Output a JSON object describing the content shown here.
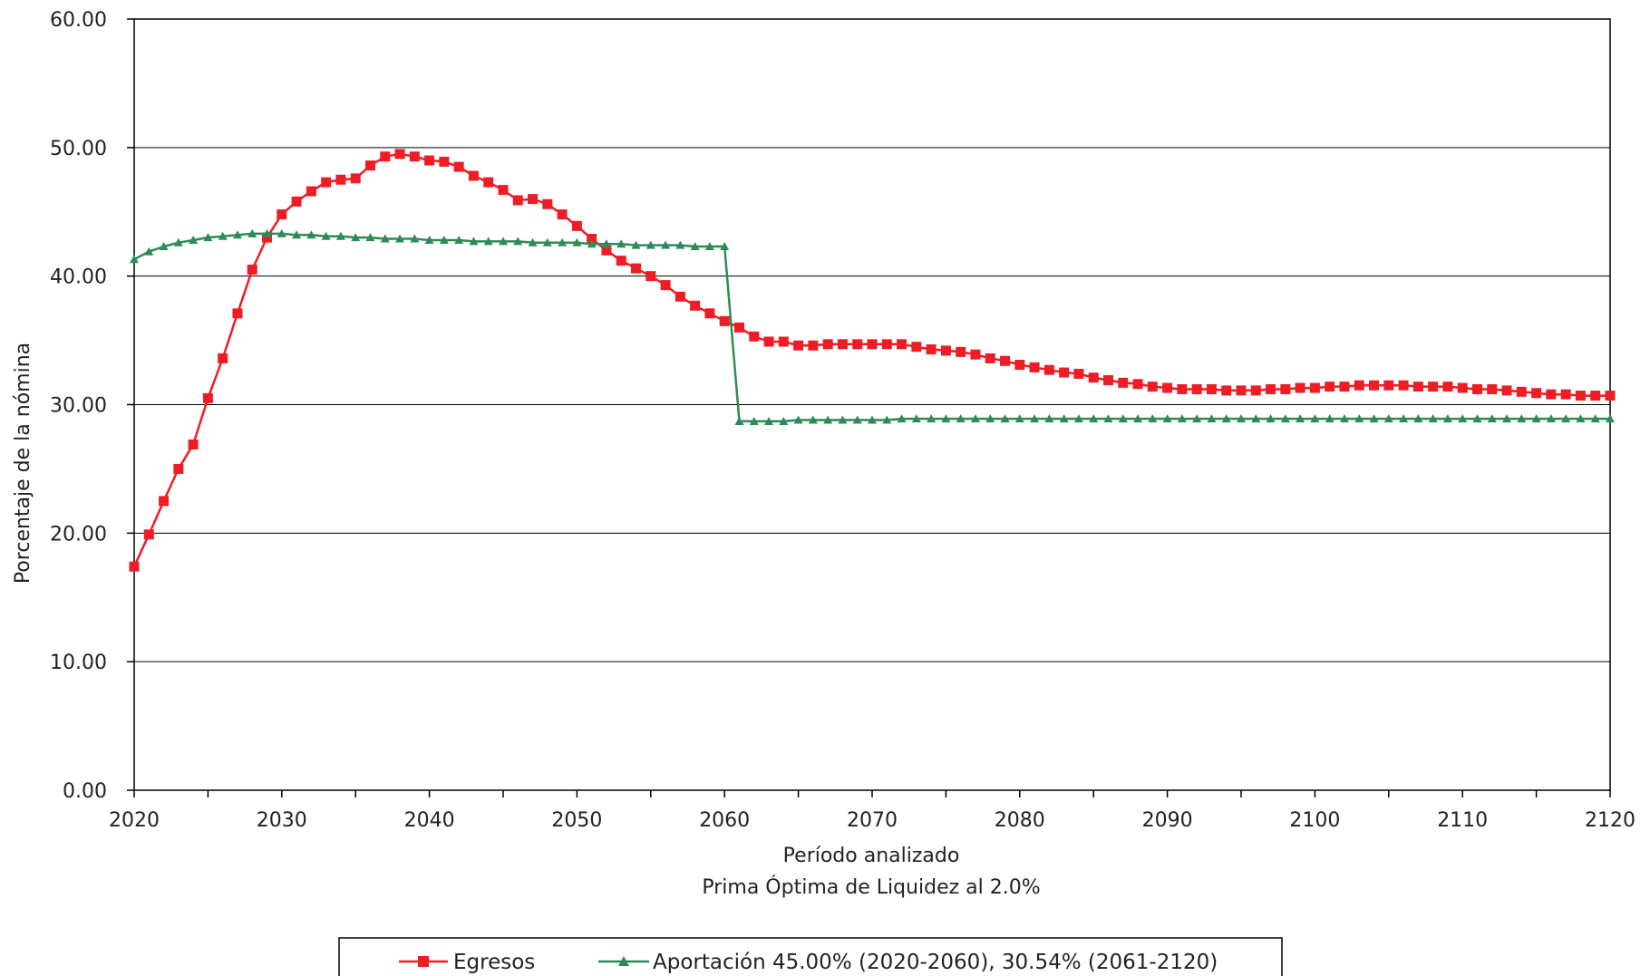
{
  "chart_data": {
    "type": "line",
    "title": "",
    "xlabel": "Período analizado",
    "subtitle": "Prima Óptima de Liquidez al 2.0%",
    "ylabel": "Porcentaje de la nómina",
    "xlim": [
      2020,
      2120
    ],
    "ylim": [
      0,
      60
    ],
    "x_ticks": [
      "2020",
      "2030",
      "2040",
      "2050",
      "2060",
      "2070",
      "2080",
      "2090",
      "2100",
      "2110",
      "2120"
    ],
    "y_ticks": [
      "0.00",
      "10.00",
      "20.00",
      "30.00",
      "40.00",
      "50.00",
      "60.00"
    ],
    "grid": "horizontal",
    "legend_position": "bottom",
    "series": [
      {
        "name": "Egresos",
        "color": "#ee1c25",
        "marker": "square",
        "x": [
          2020,
          2021,
          2022,
          2023,
          2024,
          2025,
          2026,
          2027,
          2028,
          2029,
          2030,
          2031,
          2032,
          2033,
          2034,
          2035,
          2036,
          2037,
          2038,
          2039,
          2040,
          2041,
          2042,
          2043,
          2044,
          2045,
          2046,
          2047,
          2048,
          2049,
          2050,
          2051,
          2052,
          2053,
          2054,
          2055,
          2056,
          2057,
          2058,
          2059,
          2060,
          2061,
          2062,
          2063,
          2064,
          2065,
          2066,
          2067,
          2068,
          2069,
          2070,
          2071,
          2072,
          2073,
          2074,
          2075,
          2076,
          2077,
          2078,
          2079,
          2080,
          2081,
          2082,
          2083,
          2084,
          2085,
          2086,
          2087,
          2088,
          2089,
          2090,
          2091,
          2092,
          2093,
          2094,
          2095,
          2096,
          2097,
          2098,
          2099,
          2100,
          2101,
          2102,
          2103,
          2104,
          2105,
          2106,
          2107,
          2108,
          2109,
          2110,
          2111,
          2112,
          2113,
          2114,
          2115,
          2116,
          2117,
          2118,
          2119,
          2120
        ],
        "y": [
          17.4,
          19.9,
          22.5,
          25.0,
          26.9,
          30.5,
          33.6,
          37.1,
          40.5,
          43.0,
          44.8,
          45.8,
          46.6,
          47.3,
          47.5,
          47.6,
          48.6,
          49.3,
          49.5,
          49.3,
          49.0,
          48.9,
          48.5,
          47.8,
          47.3,
          46.7,
          45.9,
          46.0,
          45.6,
          44.8,
          43.9,
          42.9,
          42.0,
          41.2,
          40.6,
          40.0,
          39.3,
          38.4,
          37.7,
          37.1,
          36.5,
          36.0,
          35.3,
          34.9,
          34.9,
          34.6,
          34.6,
          34.7,
          34.7,
          34.7,
          34.7,
          34.7,
          34.7,
          34.5,
          34.3,
          34.2,
          34.1,
          33.9,
          33.6,
          33.4,
          33.1,
          32.9,
          32.7,
          32.5,
          32.4,
          32.1,
          31.9,
          31.7,
          31.6,
          31.4,
          31.3,
          31.2,
          31.2,
          31.2,
          31.1,
          31.1,
          31.1,
          31.2,
          31.2,
          31.3,
          31.3,
          31.4,
          31.4,
          31.5,
          31.5,
          31.5,
          31.5,
          31.4,
          31.4,
          31.4,
          31.3,
          31.2,
          31.2,
          31.1,
          31.0,
          30.9,
          30.8,
          30.8,
          30.7,
          30.7,
          30.7
        ]
      },
      {
        "name": "Aportación 45.00% (2020-2060), 30.54% (2061-2120)",
        "color": "#2e8b57",
        "marker": "triangle",
        "x": [
          2020,
          2021,
          2022,
          2023,
          2024,
          2025,
          2026,
          2027,
          2028,
          2029,
          2030,
          2031,
          2032,
          2033,
          2034,
          2035,
          2036,
          2037,
          2038,
          2039,
          2040,
          2041,
          2042,
          2043,
          2044,
          2045,
          2046,
          2047,
          2048,
          2049,
          2050,
          2051,
          2052,
          2053,
          2054,
          2055,
          2056,
          2057,
          2058,
          2059,
          2060,
          2061,
          2062,
          2063,
          2064,
          2065,
          2066,
          2067,
          2068,
          2069,
          2070,
          2071,
          2072,
          2073,
          2074,
          2075,
          2076,
          2077,
          2078,
          2079,
          2080,
          2081,
          2082,
          2083,
          2084,
          2085,
          2086,
          2087,
          2088,
          2089,
          2090,
          2091,
          2092,
          2093,
          2094,
          2095,
          2096,
          2097,
          2098,
          2099,
          2100,
          2101,
          2102,
          2103,
          2104,
          2105,
          2106,
          2107,
          2108,
          2109,
          2110,
          2111,
          2112,
          2113,
          2114,
          2115,
          2116,
          2117,
          2118,
          2119,
          2120
        ],
        "y": [
          41.3,
          41.9,
          42.3,
          42.6,
          42.8,
          43.0,
          43.1,
          43.2,
          43.3,
          43.3,
          43.3,
          43.2,
          43.2,
          43.1,
          43.1,
          43.0,
          43.0,
          42.9,
          42.9,
          42.9,
          42.8,
          42.8,
          42.8,
          42.7,
          42.7,
          42.7,
          42.7,
          42.6,
          42.6,
          42.6,
          42.6,
          42.5,
          42.5,
          42.5,
          42.4,
          42.4,
          42.4,
          42.4,
          42.3,
          42.3,
          42.3,
          28.7,
          28.7,
          28.7,
          28.7,
          28.8,
          28.8,
          28.8,
          28.8,
          28.8,
          28.8,
          28.8,
          28.9,
          28.9,
          28.9,
          28.9,
          28.9,
          28.9,
          28.9,
          28.9,
          28.9,
          28.9,
          28.9,
          28.9,
          28.9,
          28.9,
          28.9,
          28.9,
          28.9,
          28.9,
          28.9,
          28.9,
          28.9,
          28.9,
          28.9,
          28.9,
          28.9,
          28.9,
          28.9,
          28.9,
          28.9,
          28.9,
          28.9,
          28.9,
          28.9,
          28.9,
          28.9,
          28.9,
          28.9,
          28.9,
          28.9,
          28.9,
          28.9,
          28.9,
          28.9,
          28.9,
          28.9,
          28.9,
          28.9,
          28.9,
          28.9
        ]
      }
    ]
  }
}
